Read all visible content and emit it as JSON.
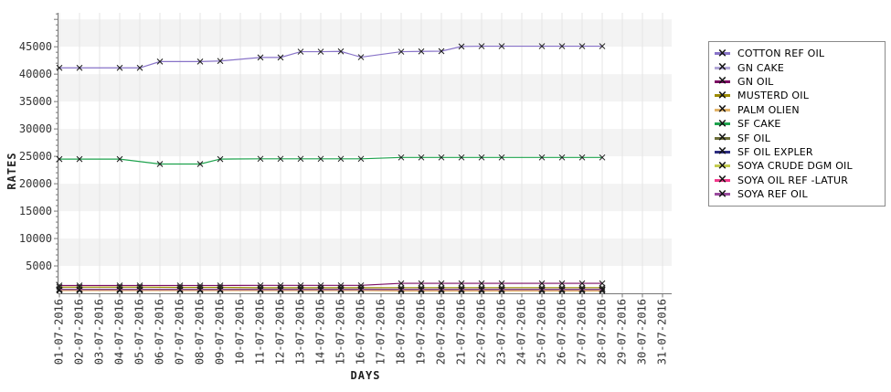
{
  "window": {
    "background": "#ffffff"
  },
  "chart_data": {
    "type": "line",
    "title": "",
    "xlabel": "DAYS",
    "ylabel": "RATES",
    "ylim": [
      0,
      51200
    ],
    "ytick_step": 5000,
    "ytick_minor_step": 1000,
    "ytick_label_max": 45000,
    "grid": "on",
    "band_color": "#f3f3f3",
    "grid_color": "#e4e4e4",
    "axis_color": "#777777",
    "tick_label_color": "#333333",
    "marker_color": "#1a1a1a",
    "legend_position": "right",
    "x_categories": [
      "01-07-2016",
      "02-07-2016",
      "03-07-2016",
      "04-07-2016",
      "05-07-2016",
      "06-07-2016",
      "07-07-2016",
      "08-07-2016",
      "09-07-2016",
      "10-07-2016",
      "11-07-2016",
      "12-07-2016",
      "13-07-2016",
      "14-07-2016",
      "15-07-2016",
      "16-07-2016",
      "17-07-2016",
      "18-07-2016",
      "19-07-2016",
      "20-07-2016",
      "21-07-2016",
      "22-07-2016",
      "23-07-2016",
      "24-07-2016",
      "25-07-2016",
      "26-07-2016",
      "27-07-2016",
      "28-07-2016",
      "29-07-2016",
      "30-07-2016",
      "31-07-2016"
    ],
    "series": [
      {
        "name": "COTTON REF OIL",
        "color": "#8873c8",
        "values": [
          41150,
          41150,
          null,
          41150,
          41150,
          42300,
          null,
          42300,
          42400,
          null,
          43050,
          43050,
          44100,
          44100,
          44150,
          43100,
          null,
          44100,
          44150,
          44200,
          45050,
          45100,
          45100,
          null,
          45100,
          45100,
          45100,
          45100,
          null,
          null,
          null
        ]
      },
      {
        "name": "GN CAKE",
        "color": "#b2a7d8",
        "values": [
          760,
          760,
          null,
          760,
          760,
          null,
          760,
          760,
          760,
          null,
          760,
          760,
          760,
          760,
          760,
          760,
          null,
          760,
          760,
          760,
          760,
          760,
          760,
          null,
          760,
          760,
          760,
          760,
          null,
          null,
          null
        ]
      },
      {
        "name": "GN OIL",
        "color": "#7b0c63",
        "values": [
          1430,
          1430,
          null,
          1430,
          1430,
          null,
          1430,
          1430,
          1430,
          null,
          1450,
          1450,
          1450,
          1450,
          1450,
          1450,
          null,
          1820,
          1820,
          1820,
          1820,
          1820,
          1820,
          null,
          1820,
          1820,
          1820,
          1820,
          null,
          null,
          null
        ]
      },
      {
        "name": "MUSTERD OIL",
        "color": "#9c8a00",
        "values": [
          1120,
          1120,
          null,
          1120,
          1120,
          null,
          1080,
          1080,
          1080,
          null,
          1020,
          1020,
          1020,
          1020,
          1020,
          1020,
          null,
          1030,
          1030,
          1030,
          1030,
          1030,
          1030,
          null,
          1030,
          1030,
          1030,
          1030,
          null,
          null,
          null
        ]
      },
      {
        "name": "PALM OLIEN",
        "color": "#e2b369",
        "values": [
          490,
          490,
          null,
          490,
          490,
          null,
          490,
          490,
          490,
          null,
          490,
          490,
          490,
          490,
          490,
          490,
          null,
          420,
          420,
          420,
          420,
          420,
          420,
          null,
          420,
          420,
          420,
          420,
          null,
          null,
          null
        ]
      },
      {
        "name": "SF CAKE",
        "color": "#1ea24d",
        "values": [
          24500,
          24500,
          null,
          24500,
          null,
          23600,
          null,
          23600,
          24500,
          null,
          24550,
          24550,
          24550,
          24550,
          24550,
          24550,
          null,
          24800,
          24800,
          24800,
          24800,
          24800,
          24800,
          null,
          24800,
          24800,
          24800,
          24800,
          null,
          null,
          null
        ]
      },
      {
        "name": "SF OIL",
        "color": "#6c6e39",
        "values": [
          730,
          730,
          null,
          730,
          730,
          null,
          730,
          730,
          730,
          null,
          730,
          730,
          730,
          730,
          730,
          730,
          null,
          730,
          730,
          730,
          730,
          730,
          730,
          null,
          730,
          730,
          730,
          730,
          null,
          null,
          null
        ]
      },
      {
        "name": "SF OIL EXPLER",
        "color": "#2d2d80",
        "values": [
          700,
          700,
          null,
          700,
          700,
          null,
          700,
          700,
          700,
          null,
          700,
          700,
          700,
          700,
          700,
          700,
          null,
          700,
          700,
          700,
          700,
          700,
          700,
          null,
          700,
          700,
          700,
          700,
          null,
          null,
          null
        ]
      },
      {
        "name": "SOYA CRUDE DGM OIL",
        "color": "#c3cb4f",
        "values": [
          625,
          625,
          null,
          625,
          625,
          null,
          625,
          625,
          625,
          null,
          625,
          625,
          625,
          625,
          625,
          625,
          null,
          625,
          625,
          625,
          625,
          625,
          625,
          null,
          625,
          625,
          625,
          625,
          null,
          null,
          null
        ]
      },
      {
        "name": "SOYA OIL REF -LATUR",
        "color": "#f23a8c",
        "values": [
          655,
          655,
          null,
          655,
          655,
          null,
          655,
          655,
          655,
          null,
          655,
          655,
          655,
          655,
          655,
          655,
          null,
          655,
          655,
          655,
          655,
          655,
          655,
          null,
          655,
          655,
          655,
          655,
          null,
          null,
          null
        ]
      },
      {
        "name": "SOYA REF OIL",
        "color": "#9a4a9e",
        "values": [
          680,
          680,
          null,
          680,
          680,
          null,
          680,
          680,
          680,
          null,
          680,
          680,
          680,
          680,
          680,
          680,
          null,
          680,
          680,
          680,
          680,
          680,
          680,
          null,
          680,
          680,
          680,
          680,
          null,
          null,
          null
        ]
      }
    ]
  }
}
